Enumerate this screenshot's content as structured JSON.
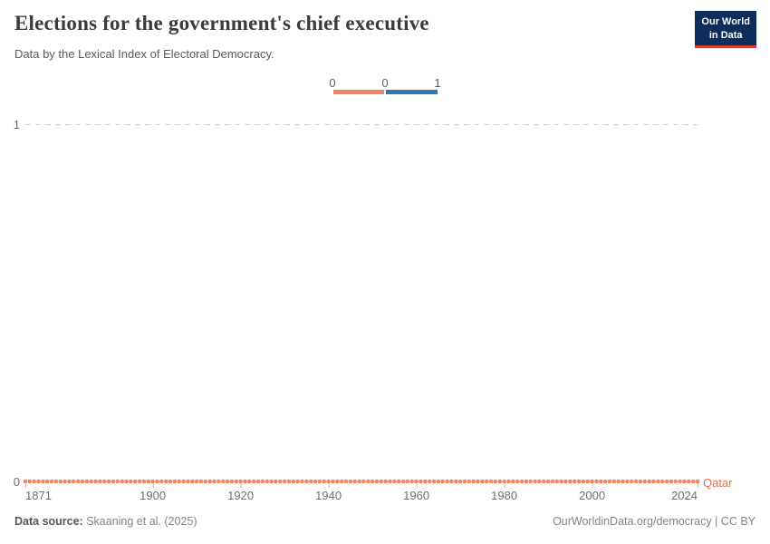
{
  "header": {
    "title": "Elections for the government's chief executive",
    "subtitle": "Data by the Lexical Index of Electoral Democracy.",
    "logo": {
      "line1": "Our World",
      "line2": "in Data",
      "bg_color": "#0d2e5b",
      "accent_color": "#d63f31",
      "text_color": "#ffffff"
    }
  },
  "legend": {
    "tick_labels": [
      "0",
      "0",
      "1"
    ],
    "segments": [
      {
        "value": "0",
        "color": "#ee8562"
      },
      {
        "value": "1",
        "color": "#2f77ae"
      }
    ]
  },
  "chart_data": {
    "type": "line",
    "title": "Elections for the government's chief executive",
    "subtitle": "Data by the Lexical Index of Electoral Democracy.",
    "xlim": [
      1871,
      2024
    ],
    "ylim": [
      0,
      1
    ],
    "x_ticks": [
      1871,
      1900,
      1920,
      1940,
      1960,
      1980,
      2000,
      2024
    ],
    "y_ticks": [
      0,
      1
    ],
    "grid": "dashed horizontal gridline at y=1 only; y=0 sits under the data line",
    "marker": "small filled circle at every yearly data point",
    "legend_position": "top-center, binary color scale 0 (orange) / 1 (blue)",
    "series": [
      {
        "name": "Qatar",
        "color": "#ef8764",
        "label_color": "#e2714e",
        "x_start": 1871,
        "x_end": 2024,
        "x_step": 1,
        "constant_value": 0,
        "description": "value is 0 for every year from 1871 through 2024"
      }
    ]
  },
  "footer": {
    "source_label": "Data source:",
    "source_value": " Skaaning et al. (2025)",
    "credit": "OurWorldinData.org/democracy | CC BY"
  }
}
